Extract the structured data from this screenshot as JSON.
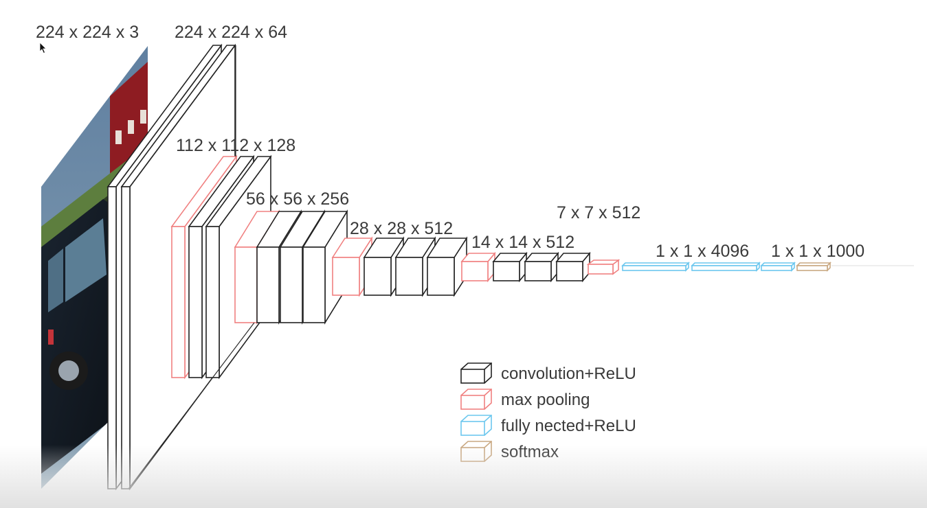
{
  "labels": {
    "input": "224 x 224 x 3",
    "conv1": "224 x 224 x 64",
    "conv2": "112 x 112 x 128",
    "conv3": "56 x 56 x 256",
    "conv4": "28 x 28 x 512",
    "conv5": "14 x 14 x 512",
    "pool5": "7 x 7 x 512",
    "fc": "1 x 1 x 4096",
    "softmax": "1 x 1 x 1000"
  },
  "legend": [
    {
      "label": "convolution+ReLU",
      "color": "#222222",
      "kind": "conv"
    },
    {
      "label": "max pooling",
      "color": "#f08080",
      "kind": "pool"
    },
    {
      "label": "fully nected+ReLU",
      "color": "#6cc7ee",
      "kind": "fc"
    },
    {
      "label": "softmax",
      "color": "#c9a882",
      "kind": "softmax"
    }
  ],
  "colors": {
    "conv": "#222222",
    "pool": "#f08080",
    "fc": "#6cc7ee",
    "softmax": "#c9a882",
    "label_text": "#3a3a3a"
  },
  "input_image": {
    "icon": "car-photo-icon"
  },
  "cursor": {
    "icon": "mouse-pointer-icon"
  }
}
